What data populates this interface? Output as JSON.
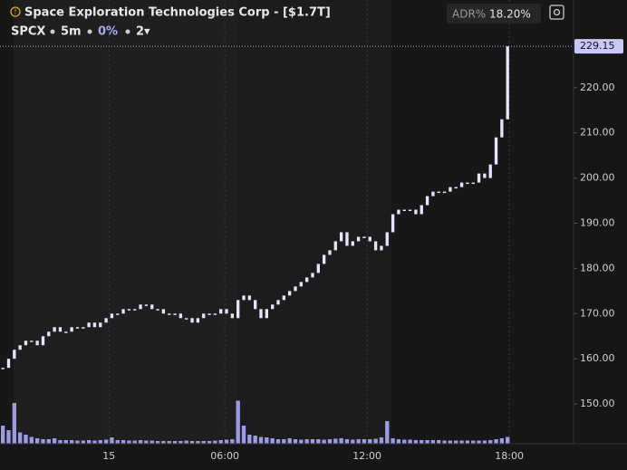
{
  "header": {
    "title": "Space Exploration Technologies Corp - [$1.7T]",
    "symbol": "SPCX",
    "interval": "5m",
    "change": "0%",
    "count": "2▾",
    "adr_label": "ADR%",
    "adr_value": "18.20%"
  },
  "chart_data": {
    "type": "candlestick",
    "series": [
      {
        "name": "SPCX",
        "color": "#e4e4ff",
        "values": [
          158,
          160,
          162,
          163,
          164,
          164,
          163,
          165,
          166,
          167,
          166,
          166,
          167,
          167,
          167,
          168,
          167,
          168,
          169,
          170,
          170,
          171,
          171,
          171,
          172,
          172,
          171,
          171,
          170,
          170,
          170,
          169,
          169,
          168,
          169,
          170,
          170,
          170,
          171,
          170,
          169,
          173,
          174,
          173,
          171,
          169,
          171,
          172,
          173,
          174,
          175,
          176,
          177,
          178,
          179,
          181,
          183,
          184,
          186,
          188,
          185,
          186,
          187,
          187,
          186,
          184,
          185,
          188,
          192,
          193,
          193,
          193,
          192,
          194,
          196,
          197,
          197,
          197,
          198,
          198,
          199,
          199,
          199,
          201,
          200,
          203,
          209,
          213,
          229.15
        ]
      }
    ],
    "volume": {
      "color": "#9b9be6",
      "values": [
        40,
        30,
        90,
        25,
        20,
        15,
        12,
        10,
        10,
        12,
        8,
        8,
        8,
        7,
        7,
        8,
        7,
        8,
        9,
        14,
        8,
        8,
        7,
        7,
        8,
        7,
        7,
        6,
        6,
        6,
        6,
        6,
        7,
        6,
        6,
        6,
        6,
        7,
        8,
        9,
        10,
        95,
        40,
        20,
        18,
        15,
        14,
        12,
        10,
        10,
        12,
        10,
        9,
        10,
        10,
        10,
        9,
        10,
        11,
        12,
        10,
        9,
        10,
        10,
        10,
        11,
        14,
        50,
        12,
        10,
        9,
        9,
        8,
        8,
        8,
        8,
        8,
        7,
        7,
        7,
        7,
        7,
        7,
        7,
        7,
        8,
        10,
        12,
        15
      ],
      "lim": [
        0,
        100
      ]
    },
    "xlim": [
      0,
      100
    ],
    "ylim": [
      141.2,
      239.4
    ],
    "xticks": [
      {
        "value": 19,
        "label": "15"
      },
      {
        "value": 39.2,
        "label": "06:00"
      },
      {
        "value": 64,
        "label": "12:00"
      },
      {
        "value": 88.8,
        "label": "18:00"
      }
    ],
    "yticks": [
      {
        "value": 150,
        "label": "150.00"
      },
      {
        "value": 160,
        "label": "160.00"
      },
      {
        "value": 170,
        "label": "170.00"
      },
      {
        "value": 180,
        "label": "180.00"
      },
      {
        "value": 190,
        "label": "190.00"
      },
      {
        "value": 200,
        "label": "200.00"
      },
      {
        "value": 210,
        "label": "210.00"
      },
      {
        "value": 220,
        "label": "220.00"
      }
    ]
  }
}
